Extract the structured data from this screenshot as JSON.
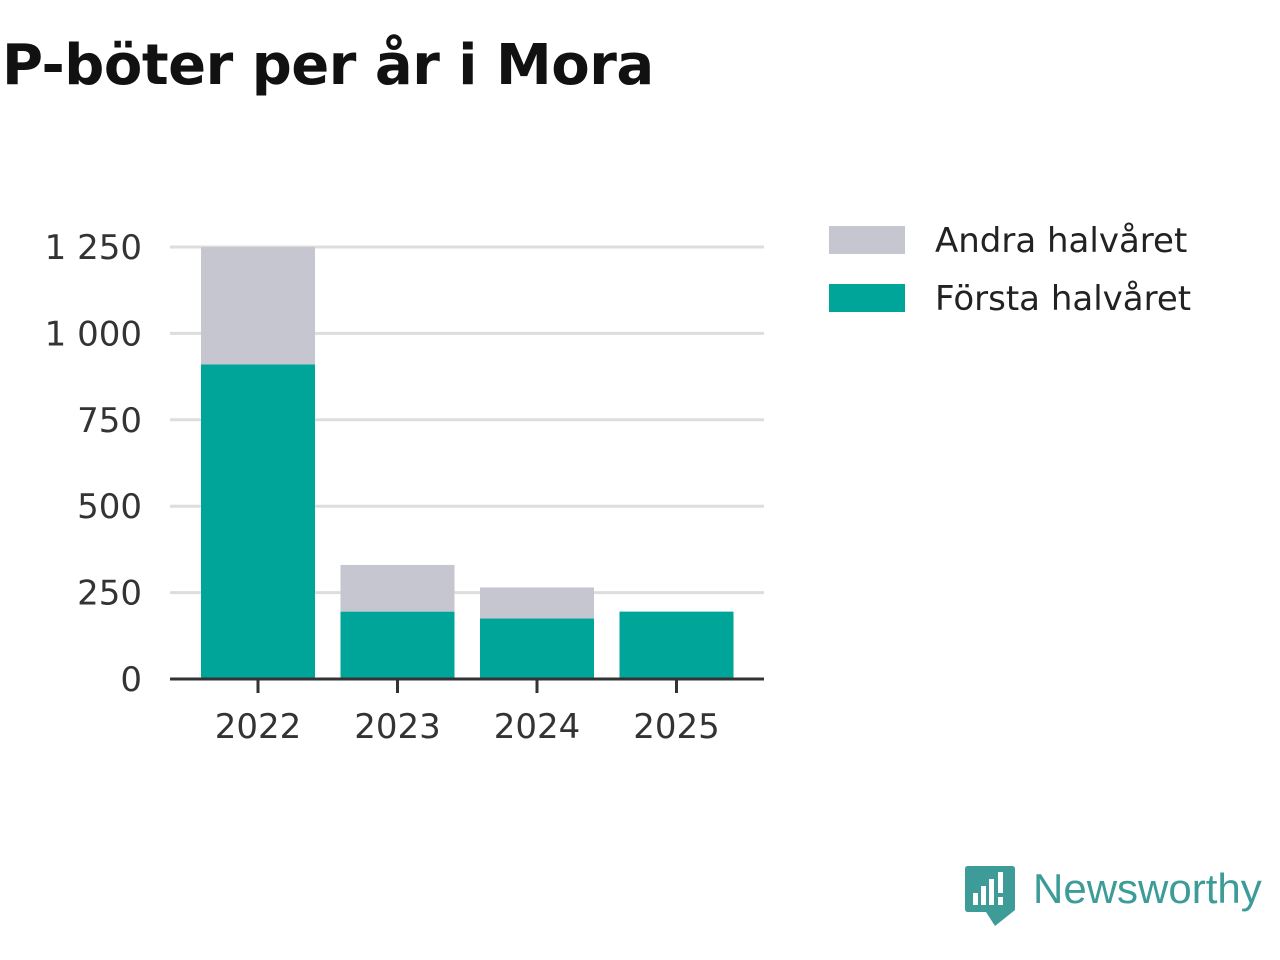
{
  "colors": {
    "first_half": "#00a599",
    "second_half": "#c6c6d1",
    "grid": "#dddddd",
    "axis": "#333333",
    "brand": "#3d9b98"
  },
  "chart_data": {
    "type": "bar",
    "stacked": true,
    "title": "P-böter per år i Mora",
    "categories": [
      "2022",
      "2023",
      "2024",
      "2025"
    ],
    "series": [
      {
        "name": "Första halvåret",
        "color": "#00a599",
        "values": [
          910,
          195,
          175,
          195
        ]
      },
      {
        "name": "Andra halvåret",
        "color": "#c6c6d1",
        "values": [
          340,
          135,
          90,
          0
        ]
      }
    ],
    "ylim": [
      0,
      1250
    ],
    "yticks": [
      0,
      250,
      500,
      750,
      1000,
      1250
    ],
    "ytick_labels": [
      "0",
      "250",
      "500",
      "750",
      "1 000",
      "1 250"
    ],
    "xlabel": "",
    "ylabel": "",
    "grid": true,
    "legend": [
      "Andra halvåret",
      "Första halvåret"
    ],
    "legend_position": "right"
  },
  "brand": {
    "name": "Newsworthy",
    "icon": "newsworthy-logo-icon"
  }
}
